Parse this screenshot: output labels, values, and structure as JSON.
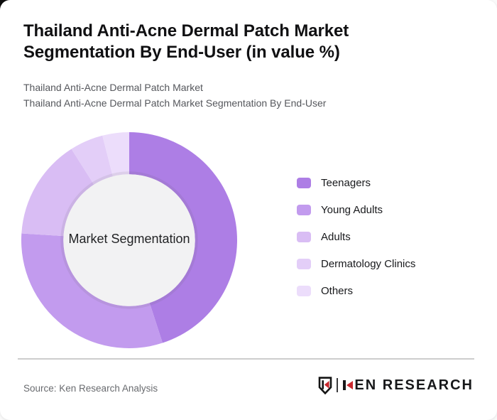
{
  "page": {
    "background": "#fafafa",
    "card_background": "#ffffff",
    "corner_backdrop": "#0d0d0d"
  },
  "header": {
    "title": "Thailand Anti-Acne Dermal Patch Market Segmentation By End-User (in value %)",
    "subtitle_line1": "Thailand Anti-Acne Dermal Patch Market",
    "subtitle_line2": "Thailand Anti-Acne Dermal Patch Market Segmentation By End-User"
  },
  "chart_data": {
    "type": "pie",
    "style": "donut",
    "title": "Thailand Anti-Acne Dermal Patch Market Segmentation By End-User (in value %)",
    "center_label": "Market Segmentation",
    "units": "value %",
    "categories": [
      "Teenagers",
      "Young Adults",
      "Adults",
      "Dermatology Clinics",
      "Others"
    ],
    "values": [
      45,
      31,
      15,
      5,
      4
    ],
    "colors": [
      "#ad7ee5",
      "#c29bee",
      "#d9bdf4",
      "#e3cef8",
      "#ecddfb"
    ],
    "start_angle_deg": 0,
    "direction": "clockwise",
    "legend_position": "right",
    "inner_radius_ratio": 0.61,
    "inner_circle_color": "#f2f2f3",
    "values_note": "percentages estimated from arc angles; no numeric labels are shown in the image"
  },
  "footer": {
    "source": "Source: Ken Research Analysis",
    "divider_color": "#cdcdcd",
    "logo": {
      "badge_letter": "K",
      "brand_text": "KEN RESEARCH",
      "accent_red": "#c9282e",
      "text_color": "#17181a"
    }
  }
}
